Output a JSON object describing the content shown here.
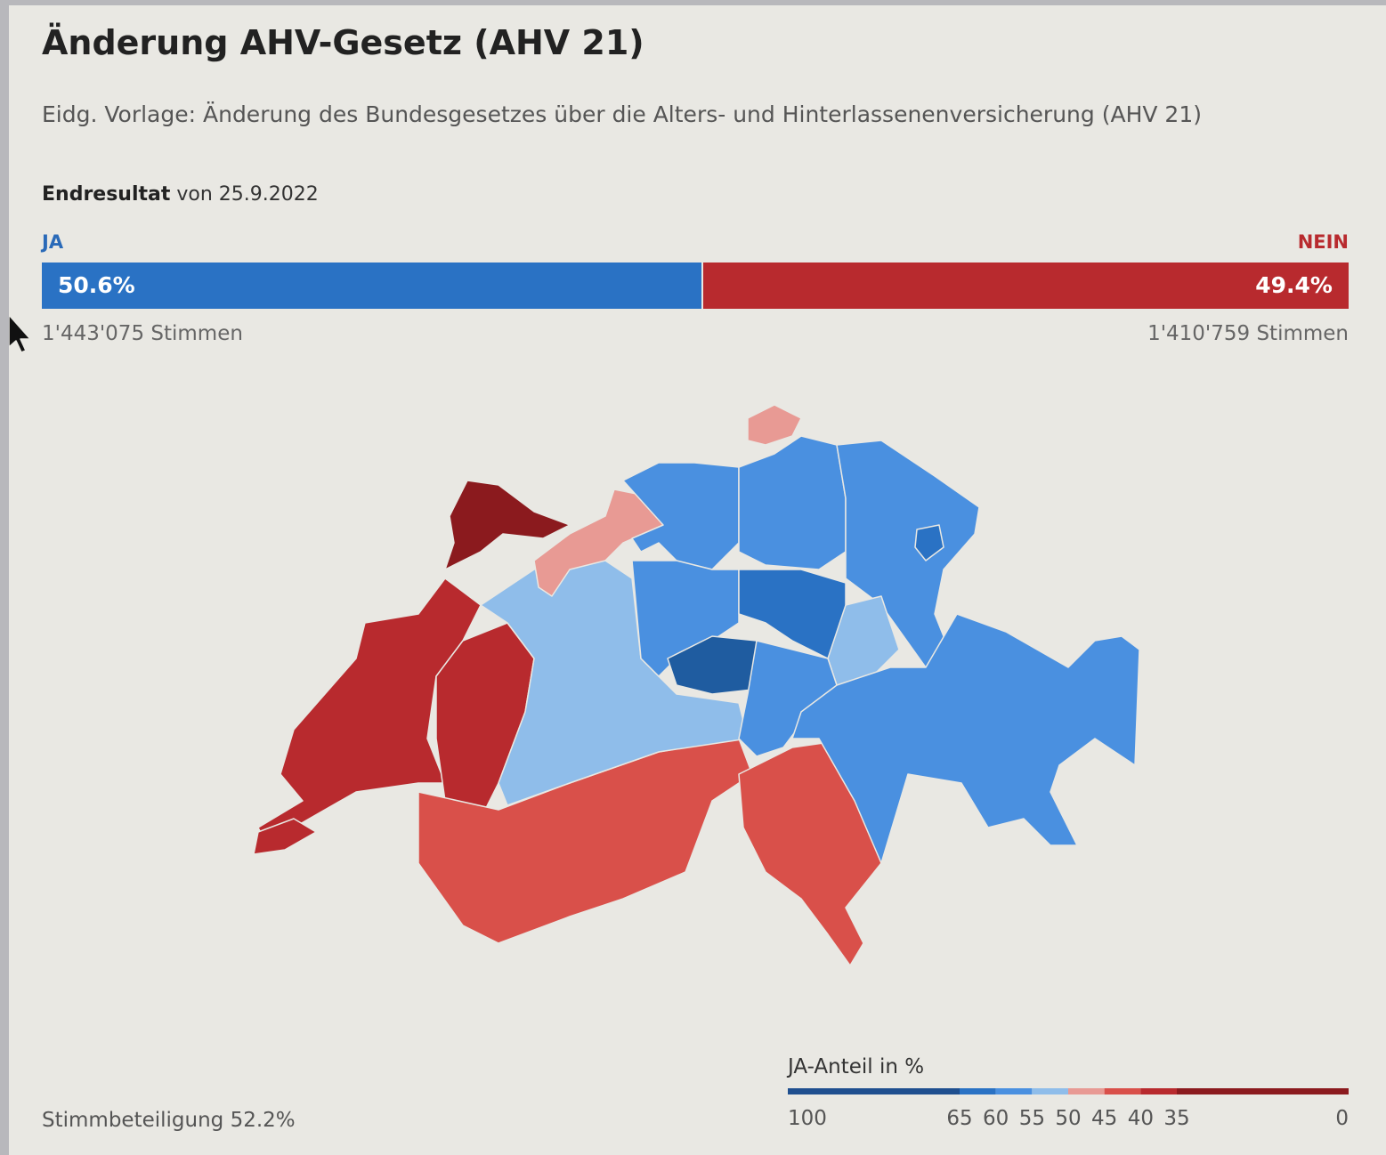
{
  "header": {
    "title": "Änderung AHV-Gesetz (AHV 21)",
    "subtitle": "Eidg. Vorlage: Änderung des Bundesgesetzes über die Alters- und Hinterlassenenversicherung (AHV 21)"
  },
  "result": {
    "status": "Endresultat",
    "date": "von 25.9.2022",
    "ja": {
      "label": "JA",
      "value": 50.6,
      "value_label": "50.6%",
      "votes": "1'443'075 Stimmen",
      "color": "#2a72c4"
    },
    "nein": {
      "label": "NEIN",
      "value": 49.4,
      "value_label": "49.4%",
      "votes": "1'410'759 Stimmen",
      "color": "#b82a2e"
    }
  },
  "turnout": "Stimmbeteiligung 52.2%",
  "legend": {
    "title": "JA-Anteil in %",
    "ticks": [
      100,
      65,
      60,
      55,
      50,
      45,
      40,
      35,
      0
    ],
    "colors": [
      "#1f4f8f",
      "#2a72c4",
      "#4a90e0",
      "#8fbdea",
      "#e89a94",
      "#d9504a",
      "#b82a2e",
      "#8b1a1e"
    ]
  }
}
